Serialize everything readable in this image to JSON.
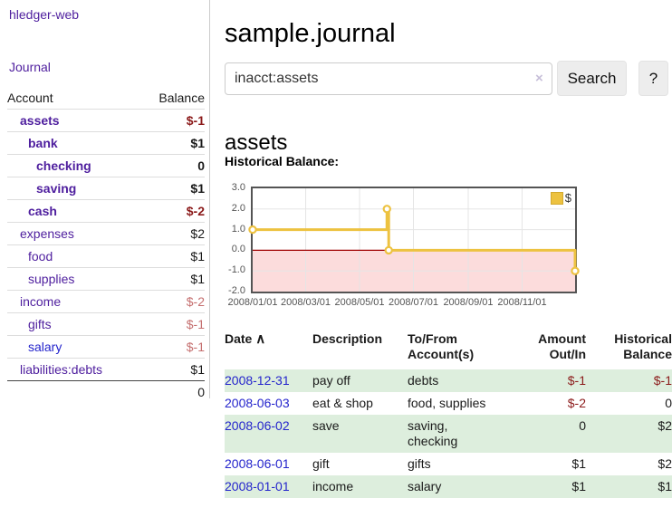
{
  "colors": {
    "link_purple": "#4e1e9e",
    "link_blue": "#2424cc",
    "negative_strong": "#8b1a1a",
    "negative_light": "#c56f6f",
    "row_stripe_green": "#ddeedd",
    "series_yellow": "#edc240",
    "zero_line_red": "#a00000",
    "negative_area_pink": "#fcdcdc"
  },
  "sidebar": {
    "app_title": "hledger-web",
    "nav": {
      "journal": "Journal"
    },
    "accounts_table": {
      "headers": {
        "account": "Account",
        "balance": "Balance"
      },
      "rows": [
        {
          "name": "assets",
          "indent": 1,
          "bold": true,
          "balance": "$-1",
          "balance_tone": "negative-strong"
        },
        {
          "name": "bank",
          "indent": 2,
          "bold": true,
          "balance": "$1",
          "balance_tone": "normal"
        },
        {
          "name": "checking",
          "indent": 3,
          "bold": true,
          "balance": "0",
          "balance_tone": "normal"
        },
        {
          "name": "saving",
          "indent": 3,
          "bold": true,
          "balance": "$1",
          "balance_tone": "normal"
        },
        {
          "name": "cash",
          "indent": 2,
          "bold": true,
          "balance": "$-2",
          "balance_tone": "negative-strong"
        },
        {
          "name": "expenses",
          "indent": 1,
          "bold": false,
          "balance": "$2",
          "balance_tone": "normal"
        },
        {
          "name": "food",
          "indent": 2,
          "bold": false,
          "balance": "$1",
          "balance_tone": "normal"
        },
        {
          "name": "supplies",
          "indent": 2,
          "bold": false,
          "balance": "$1",
          "balance_tone": "normal"
        },
        {
          "name": "income",
          "indent": 1,
          "bold": false,
          "balance": "$-2",
          "balance_tone": "negative-light"
        },
        {
          "name": "gifts",
          "indent": 2,
          "bold": false,
          "balance": "$-1",
          "balance_tone": "negative-light"
        },
        {
          "name": "salary",
          "indent": 2,
          "bold": false,
          "balance": "$-1",
          "balance_tone": "negative-light",
          "link_tone": "blue"
        },
        {
          "name": "liabilities:debts",
          "indent": 1,
          "bold": false,
          "balance": "$1",
          "balance_tone": "normal"
        }
      ],
      "total": "0"
    }
  },
  "header": {
    "title": "sample.journal"
  },
  "search": {
    "value": "inacct:assets",
    "clear_icon": "×",
    "search_label": "Search",
    "help_label": "?"
  },
  "account_page": {
    "title": "assets",
    "chart_label": "Historical Balance:"
  },
  "chart_data": {
    "type": "line",
    "step": true,
    "title": "Historical Balance:",
    "series": [
      {
        "name": "$",
        "color": "#edc240",
        "points": [
          [
            "2008-01-01",
            1
          ],
          [
            "2008-06-01",
            2
          ],
          [
            "2008-06-03",
            0
          ],
          [
            "2008-12-31",
            -1
          ]
        ]
      }
    ],
    "x_range": [
      "2008-01-01",
      "2008-12-31"
    ],
    "x_ticks": [
      "2008/01/01",
      "2008/03/01",
      "2008/05/01",
      "2008/07/01",
      "2008/09/01",
      "2008/11/01"
    ],
    "y_ticks": [
      "3.0",
      "2.0",
      "1.0",
      "0.0",
      "-1.0",
      "-2.0"
    ],
    "ylim": [
      -2,
      3
    ],
    "grid": true,
    "legend_position": "top-right",
    "legend": {
      "label": "$",
      "swatch_color": "#edc240"
    },
    "zero_line_color": "#a00000",
    "negative_area_color": "#fcdcdc"
  },
  "register_table": {
    "headers": {
      "date": "Date",
      "sort_icon": "∧",
      "description": "Description",
      "accounts": "To/From Account(s)",
      "amount": "Amount Out/In",
      "balance": "Historical Balance"
    },
    "rows": [
      {
        "date": "2008-12-31",
        "description": "pay off",
        "accounts": "debts",
        "amount": "$-1",
        "amount_tone": "negative",
        "balance": "$-1",
        "balance_tone": "negative"
      },
      {
        "date": "2008-06-03",
        "description": "eat & shop",
        "accounts": "food, supplies",
        "amount": "$-2",
        "amount_tone": "negative",
        "balance": "0",
        "balance_tone": "normal"
      },
      {
        "date": "2008-06-02",
        "description": "save",
        "accounts": "saving, checking",
        "amount": "0",
        "amount_tone": "normal",
        "balance": "$2",
        "balance_tone": "normal"
      },
      {
        "date": "2008-06-01",
        "description": "gift",
        "accounts": "gifts",
        "amount": "$1",
        "amount_tone": "normal",
        "balance": "$2",
        "balance_tone": "normal"
      },
      {
        "date": "2008-01-01",
        "description": "income",
        "accounts": "salary",
        "amount": "$1",
        "amount_tone": "normal",
        "balance": "$1",
        "balance_tone": "normal"
      }
    ]
  }
}
